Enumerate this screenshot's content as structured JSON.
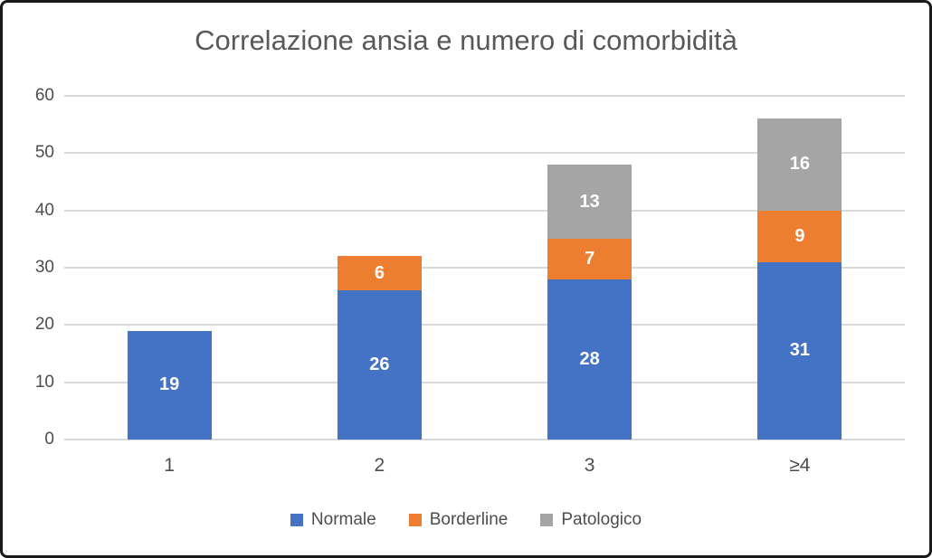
{
  "chart_data": {
    "type": "bar",
    "stacked": true,
    "title": "Correlazione ansia e numero di comorbidità",
    "categories": [
      "1",
      "2",
      "3",
      "≥4"
    ],
    "series": [
      {
        "name": "Normale",
        "color": "#4472C4",
        "values": [
          19,
          26,
          28,
          31
        ]
      },
      {
        "name": "Borderline",
        "color": "#ED7D31",
        "values": [
          0,
          6,
          7,
          9
        ]
      },
      {
        "name": "Patologico",
        "color": "#A5A5A5",
        "values": [
          0,
          0,
          13,
          16
        ]
      }
    ],
    "totals": [
      19,
      32,
      48,
      56
    ],
    "y_ticks": [
      0,
      10,
      20,
      30,
      40,
      50,
      60
    ],
    "ylim": [
      0,
      60
    ],
    "xlabel": "",
    "ylabel": "",
    "grid": true,
    "data_labels": true,
    "legend_position": "bottom",
    "colors": {
      "gridline": "#D9D9D9",
      "text": "#595959",
      "data_label": "#FFFFFF",
      "background": "#FFFFFF",
      "frame_border": "#1A1A1A"
    }
  }
}
